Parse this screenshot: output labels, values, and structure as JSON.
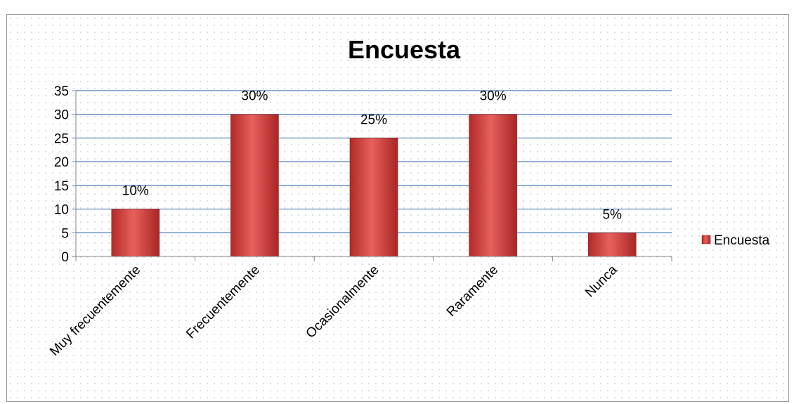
{
  "chart_data": {
    "type": "bar",
    "title": "Encuesta",
    "xlabel": "",
    "ylabel": "",
    "categories": [
      "Muy frecuentemente",
      "Frecuentemente",
      "Ocasionalmente",
      "Raramente",
      "Nunca"
    ],
    "series": [
      {
        "name": "Encuesta",
        "values": [
          10,
          30,
          25,
          30,
          5
        ]
      }
    ],
    "data_labels": [
      "10%",
      "30%",
      "25%",
      "30%",
      "5%"
    ],
    "ylim": [
      0,
      35
    ],
    "yticks": [
      0,
      5,
      10,
      15,
      20,
      25,
      30,
      35
    ],
    "grid": true,
    "legend_position": "right",
    "colors": {
      "bar": "#c0302e",
      "bar_light": "#e8605c",
      "grid": "#4a7ebb",
      "axis": "#868686"
    }
  }
}
